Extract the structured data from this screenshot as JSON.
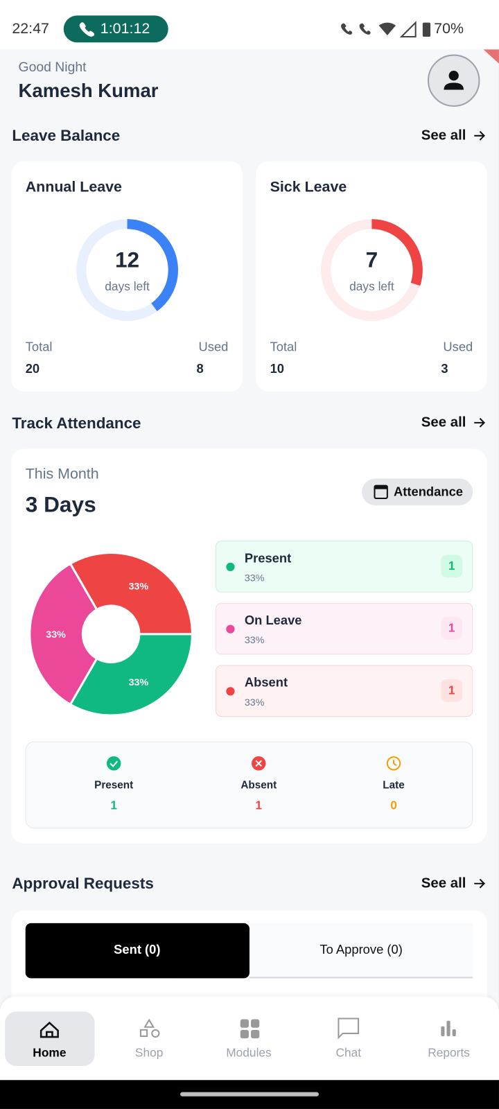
{
  "status_bar": {
    "time": "22:47",
    "call_timer": "1:01:12",
    "battery": "70%"
  },
  "header": {
    "greeting": "Good Night",
    "name": "Kamesh Kumar"
  },
  "leave_balance": {
    "title": "Leave Balance",
    "see_all": "See all",
    "cards": [
      {
        "title": "Annual Leave",
        "left": 12,
        "left_label": "days left",
        "total_label": "Total",
        "total": 20,
        "used_label": "Used",
        "used": 8,
        "color": "#3b82f6",
        "track_color": "#e8f0fd"
      },
      {
        "title": "Sick Leave",
        "left": 7,
        "left_label": "days left",
        "total_label": "Total",
        "total": 10,
        "used_label": "Used",
        "used": 3,
        "color": "#ef4444",
        "track_color": "#fdeceb"
      }
    ]
  },
  "attendance": {
    "title": "Track Attendance",
    "see_all": "See all",
    "period": "This Month",
    "days": "3 Days",
    "button": "Attendance",
    "breakdown": [
      {
        "name": "Present",
        "value": 33,
        "label": "33%",
        "count": 1,
        "color": "#10b981",
        "bg": "#ecfdf5",
        "border": "#c9f0dc",
        "badge": "#d1fae5"
      },
      {
        "name": "On Leave",
        "value": 33,
        "label": "33%",
        "count": 1,
        "color": "#ec4899",
        "bg": "#fdf2f8",
        "border": "#f9d5e7",
        "badge": "#fce7f3"
      },
      {
        "name": "Absent",
        "value": 33,
        "label": "33%",
        "count": 1,
        "color": "#ef4444",
        "bg": "#fef2f2",
        "border": "#f9d3d3",
        "badge": "#fee2e2"
      }
    ],
    "summary": [
      {
        "label": "Present",
        "value": 1,
        "color": "#10b981"
      },
      {
        "label": "Absent",
        "value": 1,
        "color": "#ef4444"
      },
      {
        "label": "Late",
        "value": 0,
        "color": "#f59e0b"
      }
    ]
  },
  "approvals": {
    "title": "Approval Requests",
    "see_all": "See all",
    "tabs": [
      "Sent (0)",
      "To Approve (0)"
    ]
  },
  "nav": [
    "Home",
    "Shop",
    "Modules",
    "Chat",
    "Reports"
  ]
}
